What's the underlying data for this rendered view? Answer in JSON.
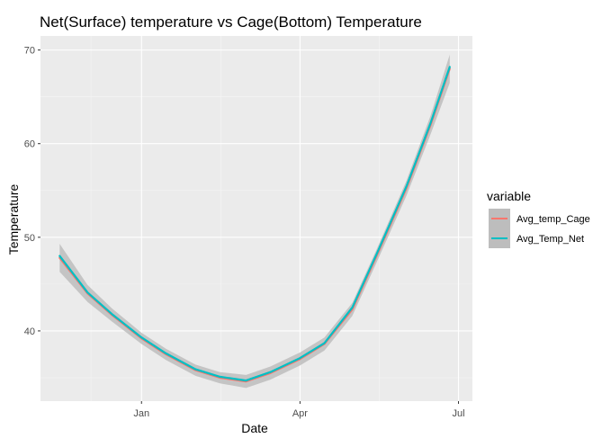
{
  "chart_data": {
    "type": "line",
    "title": "Net(Surface) temperature vs Cage(Bottom) Temperature",
    "xlabel": "Date",
    "ylabel": "Temperature",
    "x_tick_labels": [
      "Jan",
      "Apr",
      "Jul"
    ],
    "y_ticks": [
      40,
      50,
      60,
      70
    ],
    "xlim": [
      "2019-11-04",
      "2020-07-09"
    ],
    "ylim": [
      32.5,
      71.5
    ],
    "grid": true,
    "legend": {
      "title": "variable",
      "position": "right"
    },
    "series": [
      {
        "name": "Avg_temp_Cage",
        "color": "#F8766D",
        "x": [
          "2019-11-15",
          "2019-12-01",
          "2019-12-15",
          "2020-01-01",
          "2020-01-15",
          "2020-02-01",
          "2020-02-15",
          "2020-03-01",
          "2020-03-15",
          "2020-04-01",
          "2020-04-15",
          "2020-05-01",
          "2020-05-15",
          "2020-06-01",
          "2020-06-15",
          "2020-06-26"
        ],
        "y": [
          47.8,
          44.0,
          41.7,
          39.2,
          37.5,
          35.8,
          35.0,
          34.6,
          35.5,
          37.0,
          38.6,
          42.3,
          48.0,
          55.2,
          62.0,
          68.0
        ]
      },
      {
        "name": "Avg_Temp_Net",
        "color": "#00BFC4",
        "x": [
          "2019-11-15",
          "2019-12-01",
          "2019-12-15",
          "2020-01-01",
          "2020-01-15",
          "2020-02-01",
          "2020-02-15",
          "2020-03-01",
          "2020-03-15",
          "2020-04-01",
          "2020-04-15",
          "2020-05-01",
          "2020-05-15",
          "2020-06-01",
          "2020-06-15",
          "2020-06-26"
        ],
        "y": [
          48.0,
          44.1,
          41.8,
          39.3,
          37.6,
          35.9,
          35.1,
          34.7,
          35.6,
          37.1,
          38.7,
          42.5,
          48.2,
          55.4,
          62.2,
          68.2
        ]
      }
    ],
    "confidence_band": {
      "color": "#bdbdbd",
      "half_width": [
        1.5,
        0.9,
        0.7,
        0.6,
        0.6,
        0.6,
        0.6,
        0.7,
        0.7,
        0.7,
        0.7,
        0.7,
        0.7,
        0.8,
        1.0,
        1.5
      ]
    }
  }
}
